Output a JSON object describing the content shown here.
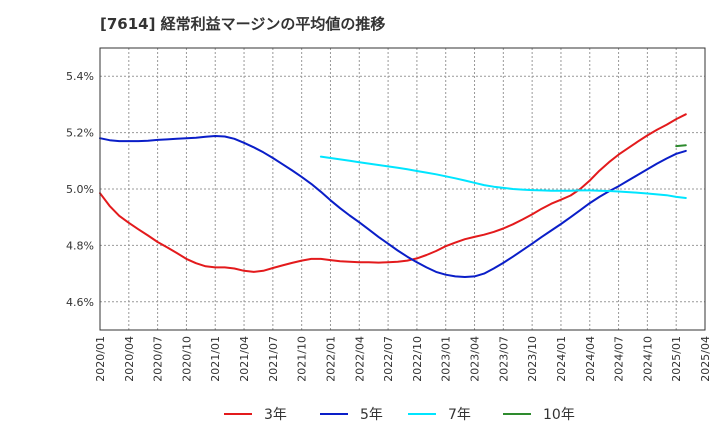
{
  "chart_data": {
    "type": "line",
    "title": "[7614]  経常利益マージンの平均値の推移",
    "xlabel": "",
    "ylabel": "",
    "ylim": [
      4.5,
      5.5
    ],
    "xlim": [
      "2020-01",
      "2025-04"
    ],
    "grid": true,
    "legend_position": "bottom",
    "x_ticks": [
      "2020/01",
      "2020/04",
      "2020/07",
      "2020/10",
      "2021/01",
      "2021/04",
      "2021/07",
      "2021/10",
      "2022/01",
      "2022/04",
      "2022/07",
      "2022/10",
      "2023/01",
      "2023/04",
      "2023/07",
      "2023/10",
      "2024/01",
      "2024/04",
      "2024/07",
      "2024/10",
      "2025/01",
      "2025/04"
    ],
    "y_ticks": [
      {
        "value": 4.6,
        "label": "4.6%"
      },
      {
        "value": 4.8,
        "label": "4.8%"
      },
      {
        "value": 5.0,
        "label": "5.0%"
      },
      {
        "value": 5.2,
        "label": "5.2%"
      },
      {
        "value": 5.4,
        "label": "5.4%"
      }
    ],
    "series": [
      {
        "name": "3年",
        "color": "#e31a1c",
        "points": [
          [
            "2020-01",
            4.985
          ],
          [
            "2020-02",
            4.94
          ],
          [
            "2020-03",
            4.905
          ],
          [
            "2020-04",
            4.88
          ],
          [
            "2020-05",
            4.857
          ],
          [
            "2020-06",
            4.835
          ],
          [
            "2020-07",
            4.812
          ],
          [
            "2020-08",
            4.793
          ],
          [
            "2020-09",
            4.773
          ],
          [
            "2020-10",
            4.752
          ],
          [
            "2020-11",
            4.737
          ],
          [
            "2020-12",
            4.726
          ],
          [
            "2021-01",
            4.722
          ],
          [
            "2021-02",
            4.722
          ],
          [
            "2021-03",
            4.718
          ],
          [
            "2021-04",
            4.71
          ],
          [
            "2021-05",
            4.706
          ],
          [
            "2021-06",
            4.71
          ],
          [
            "2021-07",
            4.72
          ],
          [
            "2021-08",
            4.729
          ],
          [
            "2021-09",
            4.738
          ],
          [
            "2021-10",
            4.746
          ],
          [
            "2021-11",
            4.752
          ],
          [
            "2021-12",
            4.752
          ],
          [
            "2022-01",
            4.748
          ],
          [
            "2022-02",
            4.744
          ],
          [
            "2022-03",
            4.742
          ],
          [
            "2022-04",
            4.74
          ],
          [
            "2022-05",
            4.74
          ],
          [
            "2022-06",
            4.739
          ],
          [
            "2022-07",
            4.74
          ],
          [
            "2022-08",
            4.742
          ],
          [
            "2022-09",
            4.746
          ],
          [
            "2022-10",
            4.754
          ],
          [
            "2022-11",
            4.766
          ],
          [
            "2022-12",
            4.78
          ],
          [
            "2023-01",
            4.797
          ],
          [
            "2023-02",
            4.81
          ],
          [
            "2023-03",
            4.822
          ],
          [
            "2023-04",
            4.83
          ],
          [
            "2023-05",
            4.838
          ],
          [
            "2023-06",
            4.848
          ],
          [
            "2023-07",
            4.86
          ],
          [
            "2023-08",
            4.875
          ],
          [
            "2023-09",
            4.892
          ],
          [
            "2023-10",
            4.91
          ],
          [
            "2023-11",
            4.93
          ],
          [
            "2023-12",
            4.948
          ],
          [
            "2024-01",
            4.962
          ],
          [
            "2024-02",
            4.977
          ],
          [
            "2024-03",
            5.0
          ],
          [
            "2024-04",
            5.03
          ],
          [
            "2024-05",
            5.065
          ],
          [
            "2024-06",
            5.095
          ],
          [
            "2024-07",
            5.122
          ],
          [
            "2024-08",
            5.145
          ],
          [
            "2024-09",
            5.168
          ],
          [
            "2024-10",
            5.19
          ],
          [
            "2024-11",
            5.21
          ],
          [
            "2024-12",
            5.228
          ],
          [
            "2025-01",
            5.248
          ],
          [
            "2025-02",
            5.265
          ]
        ]
      },
      {
        "name": "5年",
        "color": "#0a1ec8",
        "points": [
          [
            "2020-01",
            5.18
          ],
          [
            "2020-02",
            5.173
          ],
          [
            "2020-03",
            5.17
          ],
          [
            "2020-04",
            5.17
          ],
          [
            "2020-05",
            5.17
          ],
          [
            "2020-06",
            5.171
          ],
          [
            "2020-07",
            5.174
          ],
          [
            "2020-08",
            5.176
          ],
          [
            "2020-09",
            5.178
          ],
          [
            "2020-10",
            5.18
          ],
          [
            "2020-11",
            5.182
          ],
          [
            "2020-12",
            5.185
          ],
          [
            "2021-01",
            5.188
          ],
          [
            "2021-02",
            5.186
          ],
          [
            "2021-03",
            5.178
          ],
          [
            "2021-04",
            5.164
          ],
          [
            "2021-05",
            5.148
          ],
          [
            "2021-06",
            5.13
          ],
          [
            "2021-07",
            5.11
          ],
          [
            "2021-08",
            5.088
          ],
          [
            "2021-09",
            5.066
          ],
          [
            "2021-10",
            5.043
          ],
          [
            "2021-11",
            5.018
          ],
          [
            "2021-12",
            4.99
          ],
          [
            "2022-01",
            4.96
          ],
          [
            "2022-02",
            4.932
          ],
          [
            "2022-03",
            4.906
          ],
          [
            "2022-04",
            4.882
          ],
          [
            "2022-05",
            4.856
          ],
          [
            "2022-06",
            4.83
          ],
          [
            "2022-07",
            4.806
          ],
          [
            "2022-08",
            4.782
          ],
          [
            "2022-09",
            4.76
          ],
          [
            "2022-10",
            4.74
          ],
          [
            "2022-11",
            4.722
          ],
          [
            "2022-12",
            4.706
          ],
          [
            "2023-01",
            4.696
          ],
          [
            "2023-02",
            4.69
          ],
          [
            "2023-03",
            4.688
          ],
          [
            "2023-04",
            4.69
          ],
          [
            "2023-05",
            4.7
          ],
          [
            "2023-06",
            4.718
          ],
          [
            "2023-07",
            4.738
          ],
          [
            "2023-08",
            4.76
          ],
          [
            "2023-09",
            4.783
          ],
          [
            "2023-10",
            4.806
          ],
          [
            "2023-11",
            4.83
          ],
          [
            "2023-12",
            4.853
          ],
          [
            "2024-01",
            4.876
          ],
          [
            "2024-02",
            4.9
          ],
          [
            "2024-03",
            4.925
          ],
          [
            "2024-04",
            4.95
          ],
          [
            "2024-05",
            4.972
          ],
          [
            "2024-06",
            4.992
          ],
          [
            "2024-07",
            5.01
          ],
          [
            "2024-08",
            5.03
          ],
          [
            "2024-09",
            5.05
          ],
          [
            "2024-10",
            5.07
          ],
          [
            "2024-11",
            5.09
          ],
          [
            "2024-12",
            5.108
          ],
          [
            "2025-01",
            5.125
          ],
          [
            "2025-02",
            5.135
          ]
        ]
      },
      {
        "name": "7年",
        "color": "#00e5ff",
        "points": [
          [
            "2021-12",
            5.115
          ],
          [
            "2022-01",
            5.11
          ],
          [
            "2022-02",
            5.105
          ],
          [
            "2022-03",
            5.1
          ],
          [
            "2022-04",
            5.095
          ],
          [
            "2022-05",
            5.09
          ],
          [
            "2022-06",
            5.085
          ],
          [
            "2022-07",
            5.08
          ],
          [
            "2022-08",
            5.075
          ],
          [
            "2022-09",
            5.07
          ],
          [
            "2022-10",
            5.064
          ],
          [
            "2022-11",
            5.058
          ],
          [
            "2022-12",
            5.052
          ],
          [
            "2023-01",
            5.045
          ],
          [
            "2023-02",
            5.038
          ],
          [
            "2023-03",
            5.03
          ],
          [
            "2023-04",
            5.022
          ],
          [
            "2023-05",
            5.014
          ],
          [
            "2023-06",
            5.008
          ],
          [
            "2023-07",
            5.004
          ],
          [
            "2023-08",
            5.0
          ],
          [
            "2023-09",
            4.998
          ],
          [
            "2023-10",
            4.996
          ],
          [
            "2023-11",
            4.995
          ],
          [
            "2023-12",
            4.994
          ],
          [
            "2024-01",
            4.994
          ],
          [
            "2024-02",
            4.994
          ],
          [
            "2024-03",
            4.995
          ],
          [
            "2024-04",
            4.995
          ],
          [
            "2024-05",
            4.994
          ],
          [
            "2024-06",
            4.993
          ],
          [
            "2024-07",
            4.991
          ],
          [
            "2024-08",
            4.989
          ],
          [
            "2024-09",
            4.987
          ],
          [
            "2024-10",
            4.984
          ],
          [
            "2024-11",
            4.981
          ],
          [
            "2024-12",
            4.978
          ],
          [
            "2025-01",
            4.972
          ],
          [
            "2025-02",
            4.968
          ]
        ]
      },
      {
        "name": "10年",
        "color": "#2e8b2e",
        "points": [
          [
            "2025-01",
            5.152
          ],
          [
            "2025-02",
            5.155
          ]
        ]
      }
    ]
  }
}
